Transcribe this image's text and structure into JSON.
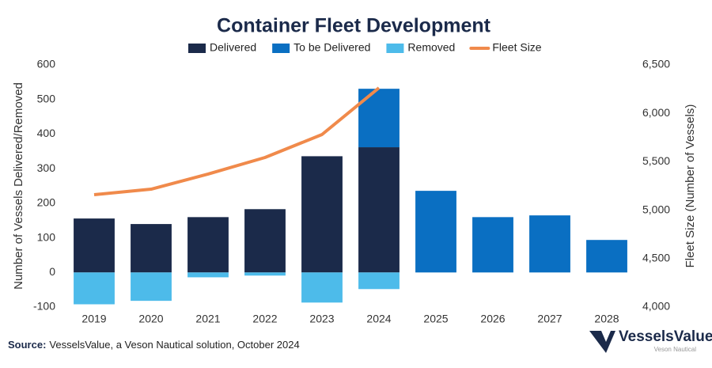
{
  "chart_data": {
    "type": "bar",
    "title": "Container Fleet Development",
    "categories": [
      "2019",
      "2020",
      "2021",
      "2022",
      "2023",
      "2024",
      "2025",
      "2026",
      "2027",
      "2028"
    ],
    "series": [
      {
        "name": "Delivered",
        "type": "bar",
        "color": "#1b2a4a",
        "values": [
          156,
          140,
          160,
          183,
          336,
          362,
          null,
          null,
          null,
          null
        ]
      },
      {
        "name": "To be Delivered",
        "type": "bar",
        "color": "#0a6fc2",
        "values": [
          null,
          null,
          null,
          null,
          null,
          169,
          236,
          160,
          165,
          94
        ]
      },
      {
        "name": "Removed",
        "type": "bar",
        "color": "#4dbbea",
        "values": [
          -92,
          -82,
          -14,
          -9,
          -87,
          -48,
          null,
          null,
          null,
          null
        ]
      },
      {
        "name": "Fleet Size",
        "type": "line",
        "axis": "y2",
        "color": "#f08a4b",
        "values": [
          5160,
          5217,
          5373,
          5544,
          5781,
          6263,
          null,
          null,
          null,
          null
        ]
      }
    ],
    "y_label": "Number of Vessels Delivered/Removed",
    "y2_label": "Fleet Size (Number of Vessels)",
    "ylim": [
      -100,
      600
    ],
    "yticks": [
      -100,
      0,
      100,
      200,
      300,
      400,
      500,
      600
    ],
    "y2lim": [
      4000,
      6500
    ],
    "y2ticks": [
      {
        "value": 4000,
        "label": "4,000"
      },
      {
        "value": 4500,
        "label": "4,500"
      },
      {
        "value": 5000,
        "label": "5,000"
      },
      {
        "value": 5500,
        "label": "5,500"
      },
      {
        "value": 6000,
        "label": "6,000"
      },
      {
        "value": 6500,
        "label": "6,500"
      }
    ],
    "source_label": "Source:",
    "source_text": "VesselsValue, a Veson Nautical solution, October 2024",
    "logo_name": "VesselsValue",
    "logo_subtitle": "Veson Nautical"
  }
}
